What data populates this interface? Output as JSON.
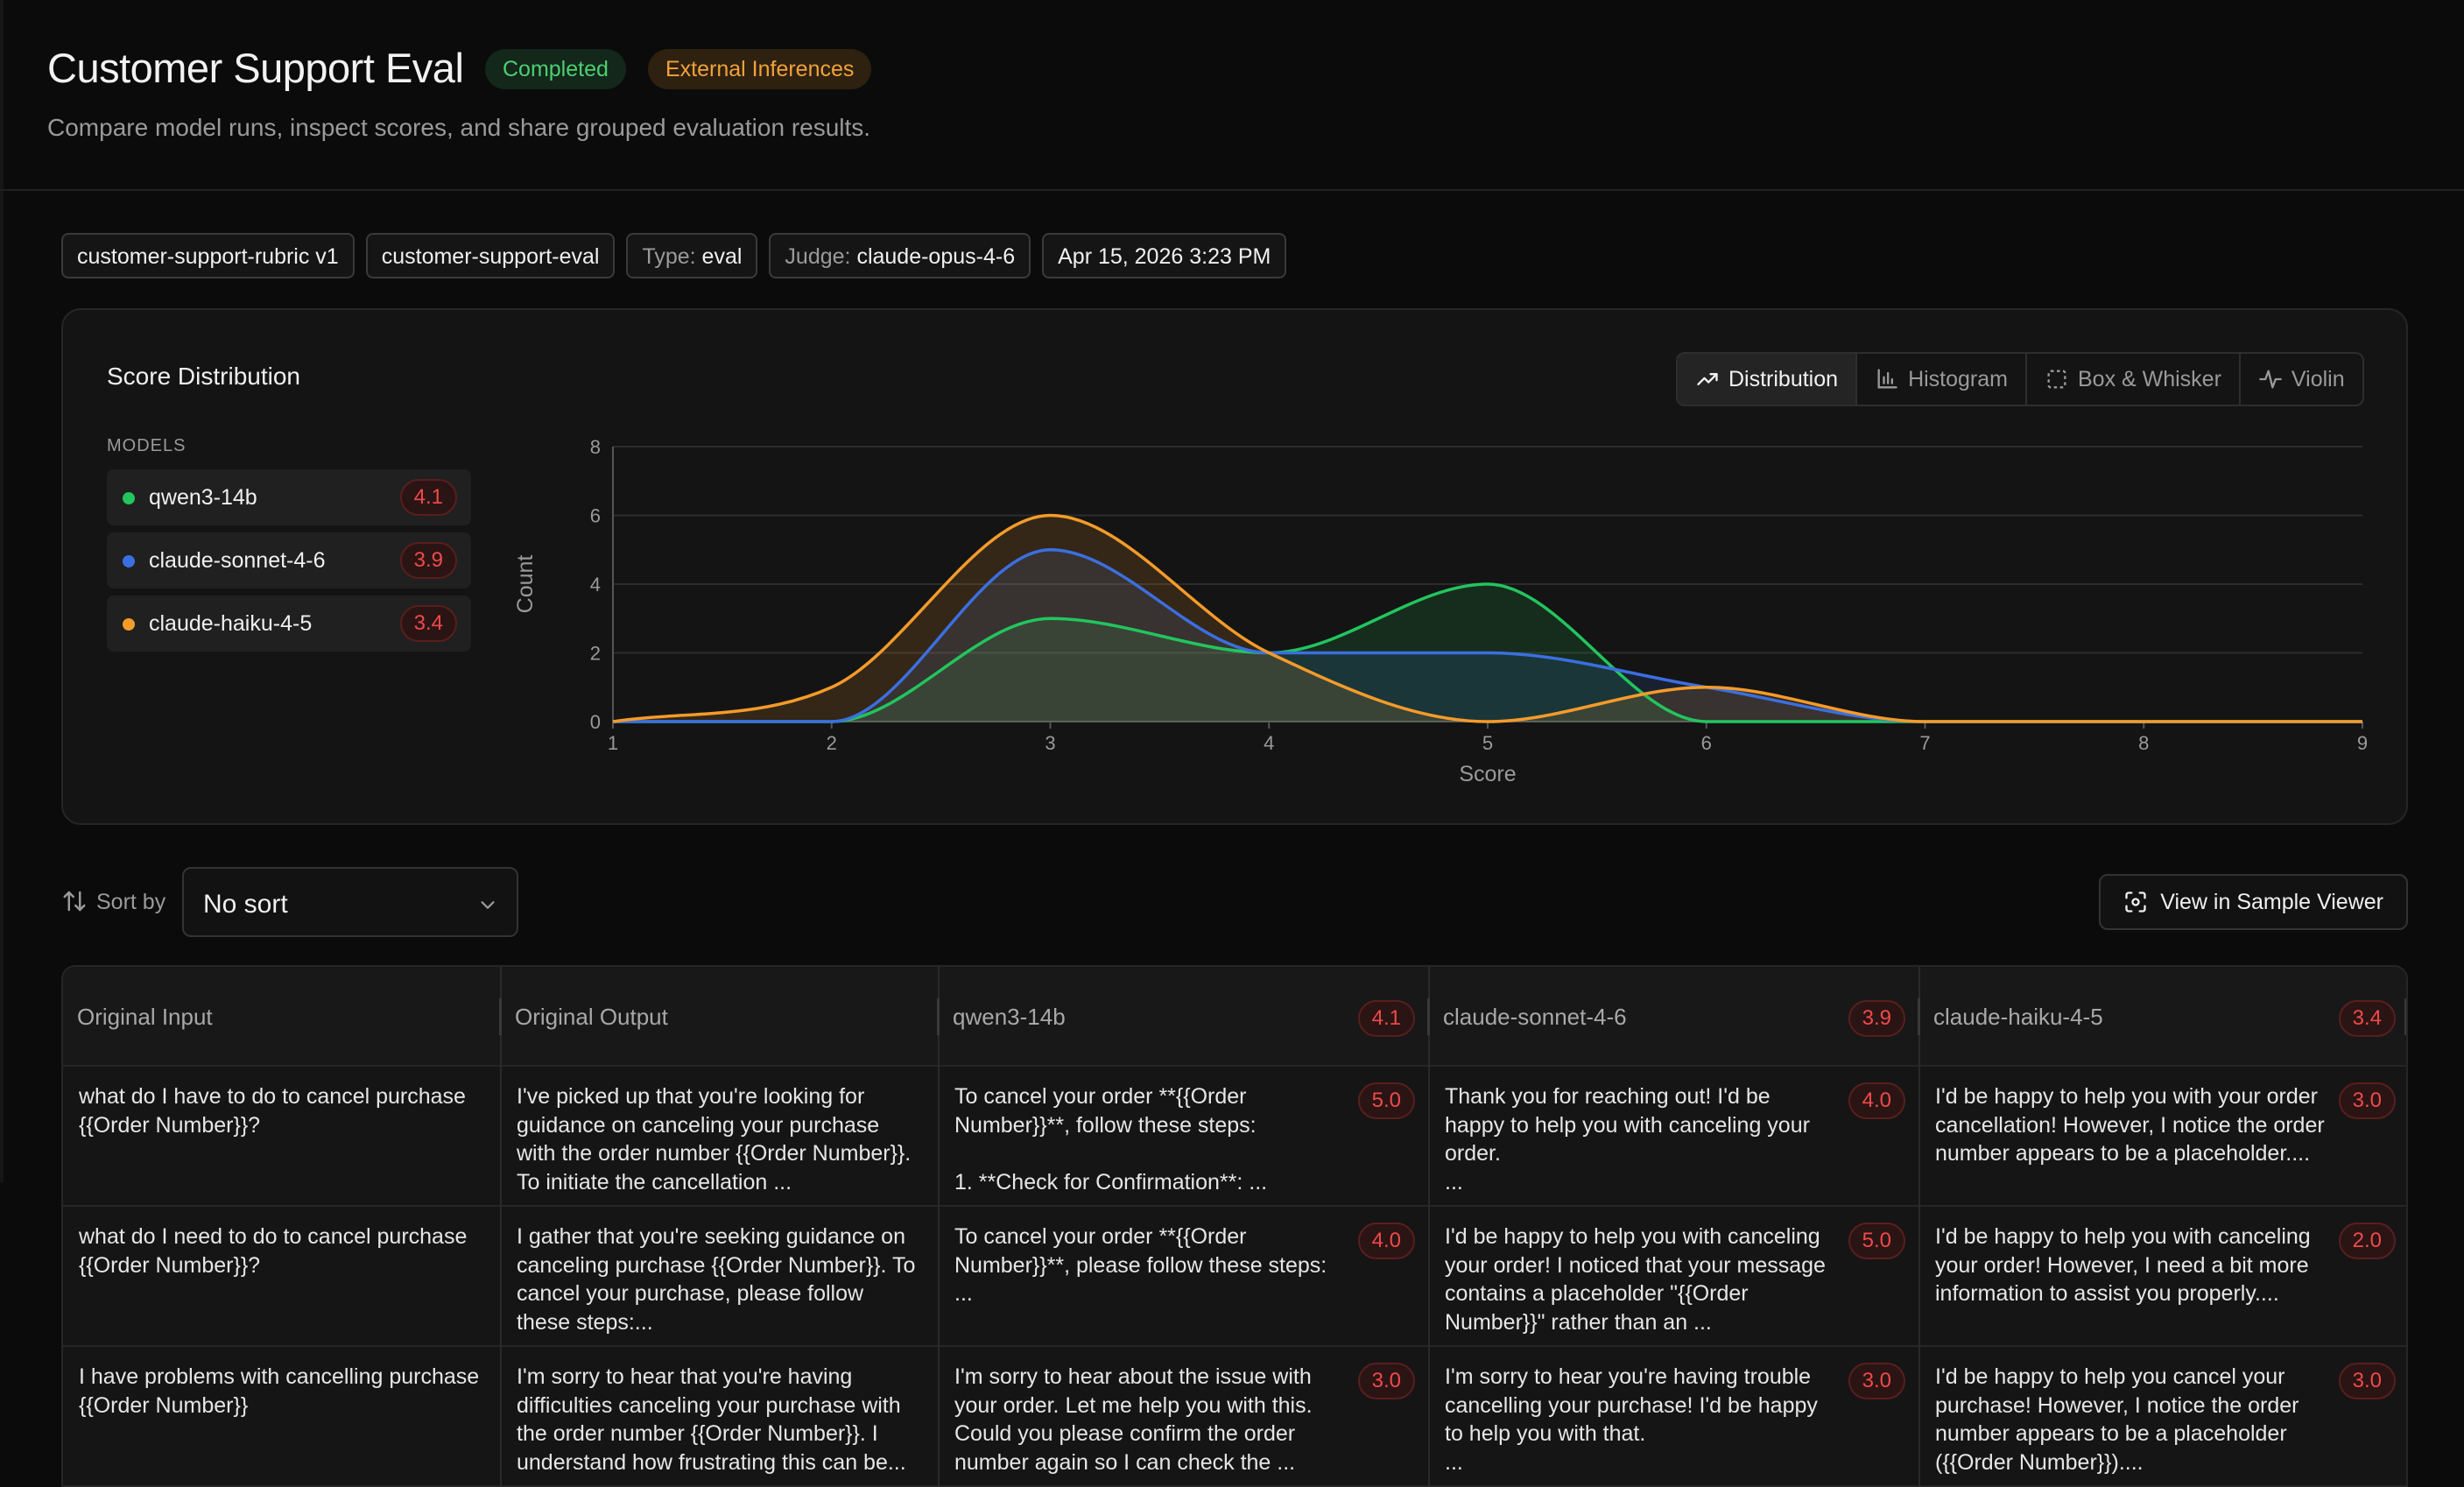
{
  "header": {
    "title": "Customer Support Eval",
    "status_badge": "Completed",
    "source_badge": "External Inferences",
    "subtitle": "Compare model runs, inspect scores, and share grouped evaluation results."
  },
  "tags": {
    "rubric": "customer-support-rubric v1",
    "dataset": "customer-support-eval",
    "type_key": "Type:",
    "type_val": "eval",
    "judge_key": "Judge:",
    "judge_val": "claude-opus-4-6",
    "date": "Apr 15, 2026 3:23 PM"
  },
  "chart_card": {
    "title": "Score Distribution",
    "models_label": "MODELS",
    "view_tabs": [
      {
        "label": "Distribution",
        "icon": "trend-icon",
        "active": true
      },
      {
        "label": "Histogram",
        "icon": "bar-chart-icon",
        "active": false
      },
      {
        "label": "Box & Whisker",
        "icon": "dashed-box-icon",
        "active": false
      },
      {
        "label": "Violin",
        "icon": "pulse-icon",
        "active": false
      }
    ],
    "models": [
      {
        "name": "qwen3-14b",
        "score": "4.1",
        "color": "#22c55e"
      },
      {
        "name": "claude-sonnet-4-6",
        "score": "3.9",
        "color": "#3b6fe0"
      },
      {
        "name": "claude-haiku-4-5",
        "score": "3.4",
        "color": "#f59b2a"
      }
    ]
  },
  "chart_data": {
    "type": "area",
    "xlabel": "Score",
    "ylabel": "Count",
    "xlim": [
      1,
      9
    ],
    "ylim": [
      0,
      8
    ],
    "x_ticks": [
      "1",
      "2",
      "3",
      "4",
      "5",
      "6",
      "7",
      "8",
      "9"
    ],
    "y_ticks": [
      "0",
      "2",
      "4",
      "6",
      "8"
    ],
    "grid": true,
    "x": [
      1,
      2,
      3,
      4,
      5,
      6,
      7,
      8,
      9
    ],
    "series": [
      {
        "name": "qwen3-14b",
        "color": "#22c55e",
        "values": [
          0,
          0,
          3,
          2,
          4,
          0,
          0,
          0,
          0
        ]
      },
      {
        "name": "claude-sonnet-4-6",
        "color": "#3b6fe0",
        "values": [
          0,
          0,
          5,
          2,
          2,
          1,
          0,
          0,
          0
        ]
      },
      {
        "name": "claude-haiku-4-5",
        "color": "#f59b2a",
        "values": [
          0,
          1,
          6,
          2,
          0,
          1,
          0,
          0,
          0
        ]
      }
    ]
  },
  "sort": {
    "label": "Sort by",
    "value": "No sort",
    "viewer_button": "View in Sample Viewer"
  },
  "table": {
    "columns": [
      {
        "label": "Original Input",
        "score": ""
      },
      {
        "label": "Original Output",
        "score": ""
      },
      {
        "label": "qwen3-14b",
        "score": "4.1"
      },
      {
        "label": "claude-sonnet-4-6",
        "score": "3.9"
      },
      {
        "label": "claude-haiku-4-5",
        "score": "3.4"
      }
    ],
    "rows": [
      {
        "input": "what do I have to do to cancel purchase {{Order Number}}?",
        "output": "I've picked up that you're looking for guidance on canceling your purchase with the order number {{Order Number}}. To initiate the cancellation ...",
        "qwen": "To cancel your order **{{Order Number}}**, follow these steps:\n\n1. **Check for Confirmation**:  ...",
        "qwen_score": "5.0",
        "sonnet": "Thank you for reaching out! I'd be happy to help you with canceling your order.\n...",
        "sonnet_score": "4.0",
        "haiku": "I'd be happy to help you with your order cancellation! However, I notice the order number appears to be a placeholder....",
        "haiku_score": "3.0"
      },
      {
        "input": "what do I need to do to cancel purchase {{Order Number}}?",
        "output": "I gather that you're seeking guidance on canceling purchase {{Order Number}}. To cancel your purchase, please follow these steps:...",
        "qwen": "To cancel your order **{{Order Number}}**, please follow these steps:\n...",
        "qwen_score": "4.0",
        "sonnet": "I'd be happy to help you with canceling your order! I noticed that your message contains a placeholder \"{{Order Number}}\" rather than an ...",
        "sonnet_score": "5.0",
        "haiku": "I'd be happy to help you with canceling your order! However, I need a bit more information to assist you properly....",
        "haiku_score": "2.0"
      },
      {
        "input": "I have problems with cancelling purchase {{Order Number}}",
        "output": "I'm sorry to hear that you're having difficulties canceling your purchase with the order number {{Order Number}}. I understand how frustrating this can be...",
        "qwen": "I'm sorry to hear about the issue with your order. Let me help you with this. Could you please confirm the order number again so I can check the ...",
        "qwen_score": "3.0",
        "sonnet": "I'm sorry to hear you're having trouble cancelling your purchase! I'd be happy to help you with that.\n...",
        "sonnet_score": "3.0",
        "haiku": "I'd be happy to help you cancel your purchase! However, I notice the order number appears to be a placeholder ({{Order Number}})....",
        "haiku_score": "3.0"
      }
    ]
  }
}
